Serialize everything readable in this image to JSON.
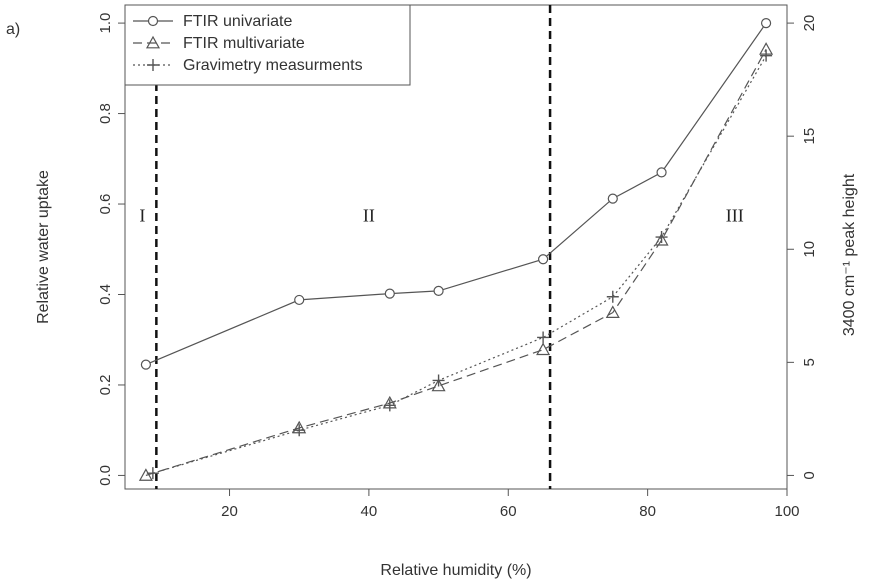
{
  "chart_data": {
    "type": "line",
    "panel_label": "a)",
    "xlabel": "Relative humidity (%)",
    "ylabel": "Relative water uptake",
    "ylabel_right": "3400 cm⁻¹ peak height",
    "xlim": [
      5,
      100
    ],
    "ylim": [
      -0.03,
      1.04
    ],
    "ylim_right": [
      -0.6,
      20.8
    ],
    "x_ticks": [
      20,
      40,
      60,
      80,
      100
    ],
    "y_ticks": [
      0.0,
      0.2,
      0.4,
      0.6,
      0.8,
      1.0
    ],
    "y_ticks_right": [
      0,
      5,
      10,
      15,
      20
    ],
    "region_boundaries": [
      9.5,
      66
    ],
    "regions": [
      {
        "label": "I",
        "x": 7.5,
        "y": 0.575
      },
      {
        "label": "II",
        "x": 40,
        "y": 0.575
      },
      {
        "label": "III",
        "x": 92.5,
        "y": 0.575
      }
    ],
    "legend_position": "top-left",
    "series": [
      {
        "name": "FTIR univariate",
        "marker": "circle",
        "line": "solid",
        "x": [
          8,
          30,
          43,
          50,
          65,
          75,
          82,
          97
        ],
        "y": [
          0.245,
          0.388,
          0.402,
          0.408,
          0.478,
          0.612,
          0.67,
          1.0
        ]
      },
      {
        "name": "FTIR multivariate",
        "marker": "triangle",
        "line": "dashed",
        "x": [
          8,
          30,
          43,
          50,
          65,
          75,
          82,
          97
        ],
        "y": [
          0.0,
          0.105,
          0.16,
          0.198,
          0.278,
          0.36,
          0.52,
          0.942
        ]
      },
      {
        "name": "Gravimetry measurments",
        "marker": "plus",
        "line": "dotted",
        "x": [
          9,
          30,
          43,
          50,
          65,
          75,
          82,
          97
        ],
        "y": [
          0.005,
          0.1,
          0.155,
          0.21,
          0.305,
          0.395,
          0.527,
          0.928
        ]
      }
    ]
  }
}
